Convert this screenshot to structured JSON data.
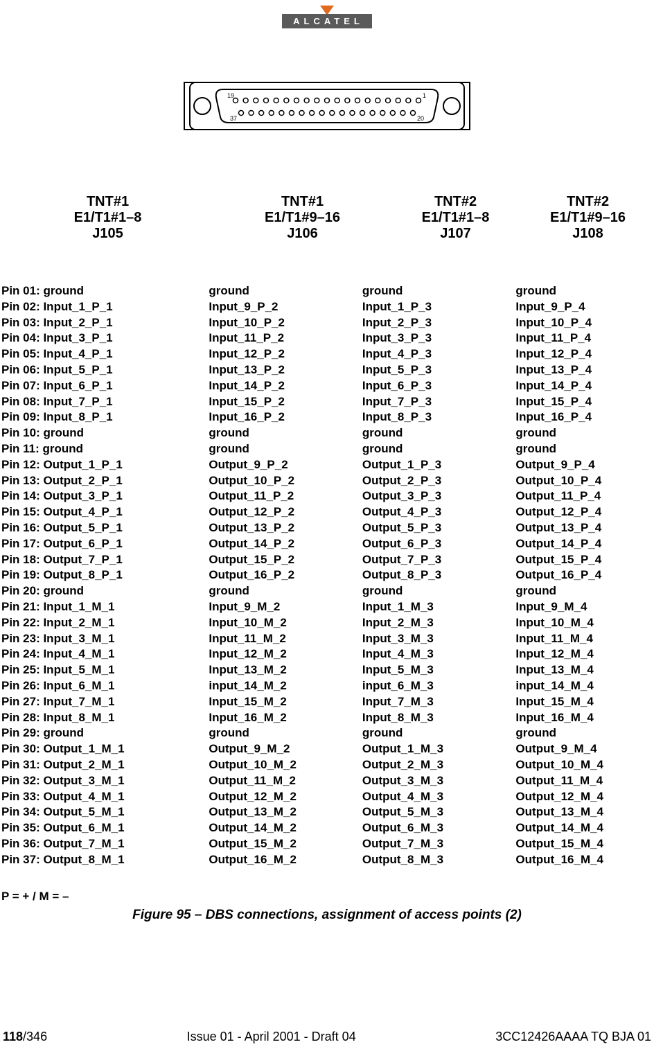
{
  "logo": {
    "text": "ALCATEL"
  },
  "connector": {
    "pin_labels": {
      "tl": "19",
      "tr": "1",
      "bl": "37",
      "br": "20"
    },
    "top_row_pins": 19,
    "bottom_row_pins": 18
  },
  "headers": [
    "TNT#1\nE1/T1#1–8\nJ105",
    "TNT#1\nE1/T1#9–16\nJ106",
    "TNT#2\nE1/T1#1–8\nJ107",
    "TNT#2\nE1/T1#9–16\nJ108"
  ],
  "pin_labels": [
    "Pin 01:",
    "Pin 02:",
    "Pin 03:",
    "Pin 04:",
    "Pin 05:",
    "Pin 06:",
    "Pin 07:",
    "Pin 08:",
    "Pin 09:",
    "Pin 10:",
    "Pin 11:",
    "Pin 12:",
    "Pin 13:",
    "Pin 14:",
    "Pin 15:",
    "Pin 16:",
    "Pin 17:",
    "Pin 18:",
    "Pin 19:",
    "Pin 20:",
    "Pin 21:",
    "Pin 22:",
    "Pin 23:",
    "Pin 24:",
    "Pin 25:",
    "Pin 26:",
    "Pin 27:",
    "Pin 28:",
    "Pin 29:",
    "Pin 30:",
    "Pin 31:",
    "Pin 32:",
    "Pin 33:",
    "Pin 34:",
    "Pin 35:",
    "Pin 36:",
    "Pin 37:"
  ],
  "columns": [
    [
      "ground",
      "Input_1_P_1",
      "Input_2_P_1",
      "Input_3_P_1",
      "Input_4_P_1",
      "Input_5_P_1",
      "Input_6_P_1",
      "Input_7_P_1",
      "Input_8_P_1",
      "ground",
      "ground",
      "Output_1_P_1",
      "Output_2_P_1",
      "Output_3_P_1",
      "Output_4_P_1",
      "Output_5_P_1",
      "Output_6_P_1",
      "Output_7_P_1",
      "Output_8_P_1",
      "ground",
      "Input_1_M_1",
      "Input_2_M_1",
      "Input_3_M_1",
      "Input_4_M_1",
      "Input_5_M_1",
      "Input_6_M_1",
      "Input_7_M_1",
      "Input_8_M_1",
      "ground",
      "Output_1_M_1",
      "Output_2_M_1",
      "Output_3_M_1",
      "Output_4_M_1",
      "Output_5_M_1",
      "Output_6_M_1",
      "Output_7_M_1",
      "Output_8_M_1"
    ],
    [
      "ground",
      "Input_9_P_2",
      "Input_10_P_2",
      "Input_11_P_2",
      "Input_12_P_2",
      "Input_13_P_2",
      "Input_14_P_2",
      "Input_15_P_2",
      "Input_16_P_2",
      "ground",
      "ground",
      "Output_9_P_2",
      "Output_10_P_2",
      "Output_11_P_2",
      "Output_12_P_2",
      "Output_13_P_2",
      "Output_14_P_2",
      "Output_15_P_2",
      "Output_16_P_2",
      "ground",
      "Input_9_M_2",
      "Input_10_M_2",
      "Input_11_M_2",
      "Input_12_M_2",
      "Input_13_M_2",
      "input_14_M_2",
      "Input_15_M_2",
      "Input_16_M_2",
      "ground",
      "Output_9_M_2",
      "Output_10_M_2",
      "Output_11_M_2",
      "Output_12_M_2",
      "Output_13_M_2",
      "Output_14_M_2",
      "Output_15_M_2",
      "Output_16_M_2"
    ],
    [
      "ground",
      "Input_1_P_3",
      "Input_2_P_3",
      "Input_3_P_3",
      "Input_4_P_3",
      "Input_5_P_3",
      "Input_6_P_3",
      "Input_7_P_3",
      "Input_8_P_3",
      "ground",
      "ground",
      "Output_1_P_3",
      "Output_2_P_3",
      "Output_3_P_3",
      "Output_4_P_3",
      "Output_5_P_3",
      "Output_6_P_3",
      "Output_7_P_3",
      "Output_8_P_3",
      "ground",
      "Input_1_M_3",
      "Input_2_M_3",
      "Input_3_M_3",
      "Input_4_M_3",
      "Input_5_M_3",
      "input_6_M_3",
      "Input_7_M_3",
      "Input_8_M_3",
      "ground",
      "Output_1_M_3",
      "Output_2_M_3",
      "Output_3_M_3",
      "Output_4_M_3",
      "Output_5_M_3",
      "Output_6_M_3",
      "Output_7_M_3",
      "Output_8_M_3"
    ],
    [
      "ground",
      "Input_9_P_4",
      "Input_10_P_4",
      "Input_11_P_4",
      "Input_12_P_4",
      "Input_13_P_4",
      "Input_14_P_4",
      "Input_15_P_4",
      "Input_16_P_4",
      "ground",
      "ground",
      "Output_9_P_4",
      "Output_10_P_4",
      "Output_11_P_4",
      "Output_12_P_4",
      "Output_13_P_4",
      "Output_14_P_4",
      "Output_15_P_4",
      "Output_16_P_4",
      "ground",
      "Input_9_M_4",
      "Input_10_M_4",
      "Input_11_M_4",
      "Input_12_M_4",
      "Input_13_M_4",
      "input_14_M_4",
      "Input_15_M_4",
      "Input_16_M_4",
      "ground",
      "Output_9_M_4",
      "Output_10_M_4",
      "Output_11_M_4",
      "Output_12_M_4",
      "Output_13_M_4",
      "Output_14_M_4",
      "Output_15_M_4",
      "Output_16_M_4"
    ]
  ],
  "legend": "P = +  / M = –",
  "caption": "Figure 95 – DBS connections, assignment of access points (2)",
  "footer": {
    "page_bold": "118",
    "page_total": "/346",
    "center": "Issue 01 - April 2001 - Draft 04",
    "right": "3CC12426AAAA TQ BJA 01"
  }
}
